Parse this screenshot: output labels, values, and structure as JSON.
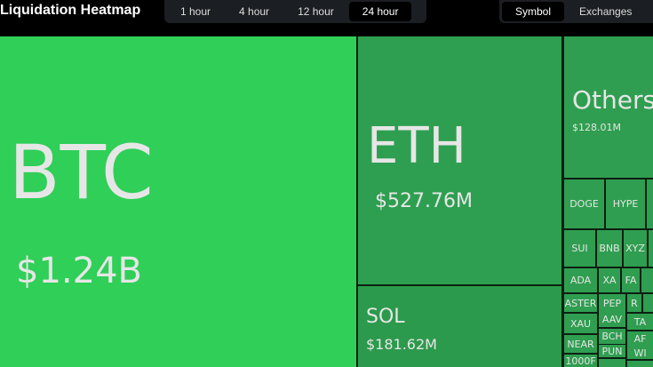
{
  "header": {
    "title": "Liquidation Heatmap",
    "time_tabs": [
      "1 hour",
      "4 hour",
      "12 hour",
      "24 hour"
    ],
    "view_tabs": [
      "Symbol",
      "Exchanges"
    ]
  },
  "tiles": [
    {
      "label": "BTC",
      "value": "$1.24B"
    },
    {
      "label": "ETH",
      "value": "$527.76M"
    },
    {
      "label": "SOL",
      "value": "$181.62M"
    },
    {
      "label": "Others",
      "value": "$128.01M"
    },
    {
      "label": "DOGE"
    },
    {
      "label": "HYPE"
    },
    {
      "label": "SUI"
    },
    {
      "label": "BNB"
    },
    {
      "label": "XYZ"
    },
    {
      "label": "ADA"
    },
    {
      "label": "XA"
    },
    {
      "label": "FA"
    },
    {
      "label": "ASTER"
    },
    {
      "label": "PEP"
    },
    {
      "label": "R"
    },
    {
      "label": "XAU"
    },
    {
      "label": "AAV"
    },
    {
      "label": "TA"
    },
    {
      "label": "NEAR"
    },
    {
      "label": "BCH"
    },
    {
      "label": "AF"
    },
    {
      "label": "1000F"
    },
    {
      "label": "PUN"
    },
    {
      "label": "WI"
    }
  ]
}
